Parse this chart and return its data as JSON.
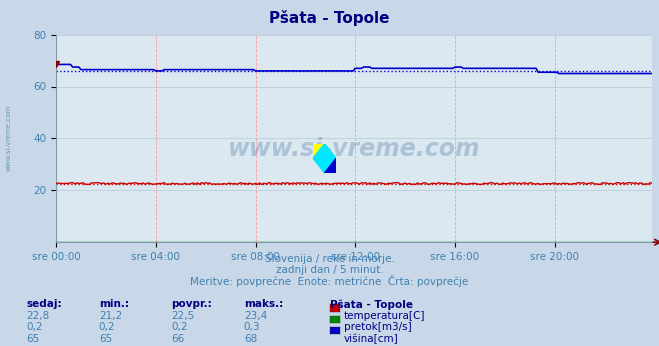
{
  "title": "Pšata - Topole",
  "bg_color": "#c8d8e8",
  "plot_bg_color": "#dce8f0",
  "title_color": "#000080",
  "title_fontsize": 11,
  "ylim": [
    0,
    80
  ],
  "yticks": [
    20,
    40,
    60,
    80
  ],
  "n_points": 288,
  "temp_avg": 22.5,
  "height_avg": 66.0,
  "xtick_labels": [
    "sre 00:00",
    "sre 04:00",
    "sre 08:00",
    "sre 12:00",
    "sre 16:00",
    "sre 20:00"
  ],
  "xtick_positions": [
    0,
    48,
    96,
    144,
    192,
    240
  ],
  "temp_color": "#cc0000",
  "flow_color": "#008800",
  "height_color": "#0000cc",
  "watermark": "www.si-vreme.com",
  "subtitle1": "Slovenija / reke in morje.",
  "subtitle2": "zadnji dan / 5 minut.",
  "subtitle3": "Meritve: povprečne  Enote: metrične  Črta: povprečje",
  "legend_title": "Pšata - Topole",
  "legend_items": [
    "temperatura[C]",
    "pretok[m3/s]",
    "višina[cm]"
  ],
  "legend_colors": [
    "#cc0000",
    "#008800",
    "#0000cc"
  ],
  "table_headers": [
    "sedaj:",
    "min.:",
    "povpr.:",
    "maks.:"
  ],
  "table_temp": [
    "22,8",
    "21,2",
    "22,5",
    "23,4"
  ],
  "table_flow": [
    "0,2",
    "0,2",
    "0,2",
    "0,3"
  ],
  "table_height": [
    "65",
    "65",
    "66",
    "68"
  ],
  "sidebar_text": "www.si-vreme.com",
  "sidebar_color": "#6090b0",
  "grid_v_color": "#ff9999",
  "grid_h_color": "#b0c8d8",
  "text_color": "#4080b0"
}
